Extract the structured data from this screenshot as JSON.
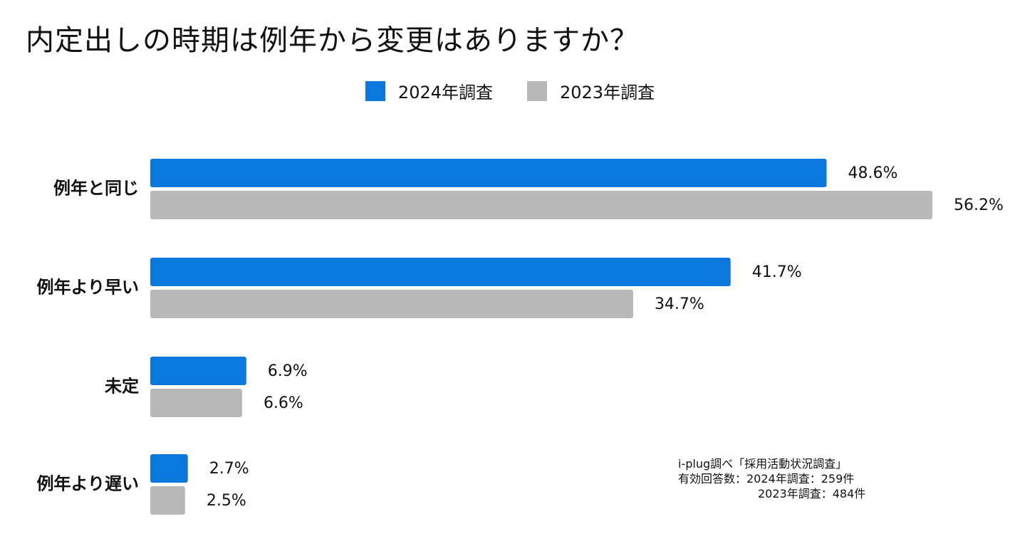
{
  "chart_data": {
    "type": "bar",
    "orientation": "horizontal",
    "title": "内定出しの時期は例年から変更はありますか？",
    "categories": [
      "例年と同じ",
      "例年より早い",
      "未定",
      "例年より遅い"
    ],
    "series": [
      {
        "name": "2024年調査",
        "color": "#0A78DC",
        "values": [
          48.6,
          41.7,
          6.9,
          2.7
        ],
        "labels": [
          "48.6%",
          "41.7%",
          "6.9%",
          "2.7%"
        ]
      },
      {
        "name": "2023年調査",
        "color": "#B8B8B8",
        "values": [
          56.2,
          34.7,
          6.6,
          2.5
        ],
        "labels": [
          "56.2%",
          "34.7%",
          "6.6%",
          "2.5%"
        ]
      }
    ],
    "xlim": [
      0,
      56.2
    ],
    "legend_position": "top-center",
    "grid": false
  },
  "note": {
    "line1": "i-plug調べ「採用活動状況調査」",
    "line2": "有効回答数：2024年調査：259件",
    "line3": "2023年調査：484件"
  }
}
